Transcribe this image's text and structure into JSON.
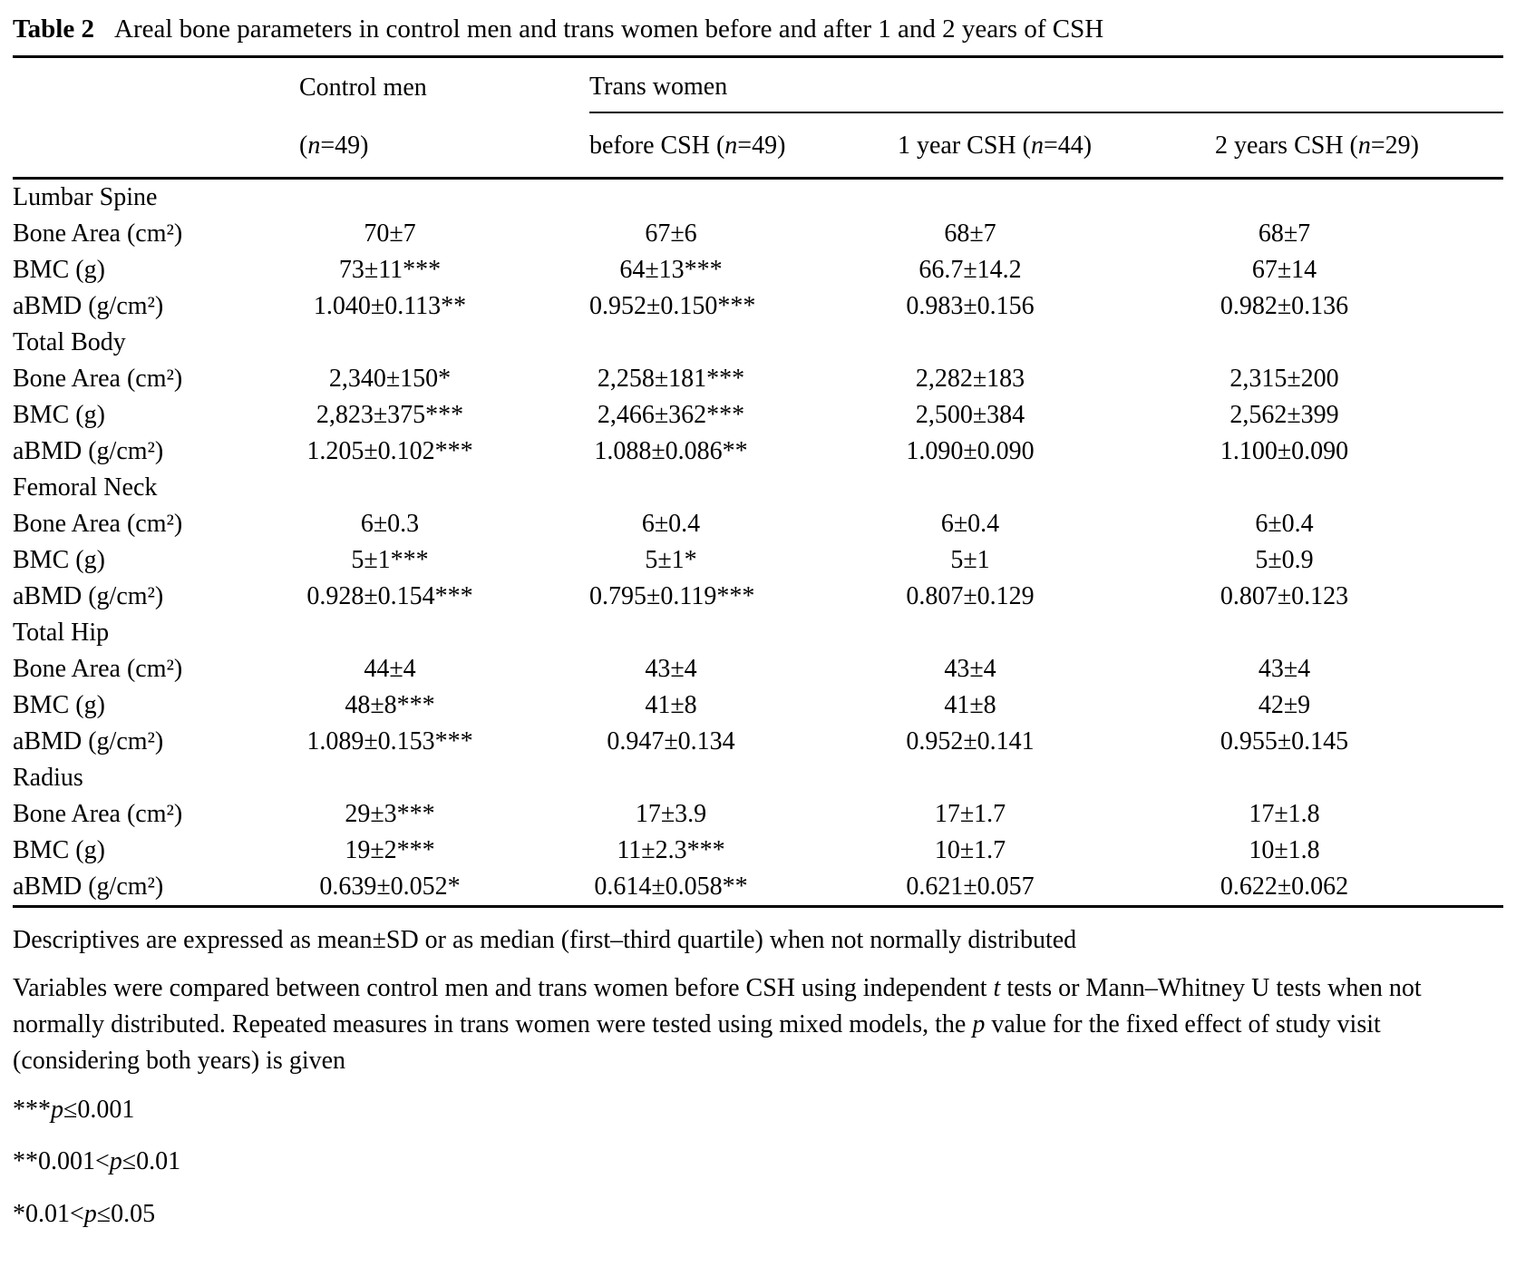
{
  "title": {
    "label": "Table 2",
    "text": "Areal bone parameters in control men and trans women before and after 1 and 2 years of CSH"
  },
  "header": {
    "control": {
      "title": "Control men",
      "sub": {
        "pre": "(",
        "n": "n",
        "post": "=49)"
      }
    },
    "trans": {
      "title": "Trans women",
      "subcols": [
        {
          "pre": "before CSH (",
          "n": "n",
          "post": "=49)"
        },
        {
          "pre": "1 year CSH (",
          "n": "n",
          "post": "=44)"
        },
        {
          "pre": "2 years CSH (",
          "n": "n",
          "post": "=29)"
        }
      ]
    }
  },
  "table": {
    "sections": [
      {
        "name": "Lumbar Spine",
        "rows": [
          {
            "label": "Bone Area (cm²)",
            "values": [
              "70±7",
              "67±6",
              "68±7",
              "68±7"
            ]
          },
          {
            "label": "BMC (g)",
            "values": [
              "73±11***",
              "64±13***",
              "66.7±14.2",
              "67±14"
            ]
          },
          {
            "label": "aBMD (g/cm²)",
            "values": [
              "1.040±0.113**",
              "0.952±0.150***",
              "0.983±0.156",
              "0.982±0.136"
            ]
          }
        ]
      },
      {
        "name": "Total Body",
        "rows": [
          {
            "label": "Bone Area (cm²)",
            "values": [
              "2,340±150*",
              "2,258±181***",
              "2,282±183",
              "2,315±200"
            ]
          },
          {
            "label": "BMC (g)",
            "values": [
              "2,823±375***",
              "2,466±362***",
              "2,500±384",
              "2,562±399"
            ]
          },
          {
            "label": "aBMD (g/cm²)",
            "values": [
              "1.205±0.102***",
              "1.088±0.086**",
              "1.090±0.090",
              "1.100±0.090"
            ]
          }
        ]
      },
      {
        "name": "Femoral Neck",
        "rows": [
          {
            "label": "Bone Area (cm²)",
            "values": [
              "6±0.3",
              "6±0.4",
              "6±0.4",
              "6±0.4"
            ]
          },
          {
            "label": "BMC (g)",
            "values": [
              "5±1***",
              "5±1*",
              "5±1",
              "5±0.9"
            ]
          },
          {
            "label": "aBMD (g/cm²)",
            "values": [
              "0.928±0.154***",
              "0.795±0.119***",
              "0.807±0.129",
              "0.807±0.123"
            ]
          }
        ]
      },
      {
        "name": "Total Hip",
        "rows": [
          {
            "label": "Bone Area (cm²)",
            "values": [
              "44±4",
              "43±4",
              "43±4",
              "43±4"
            ]
          },
          {
            "label": "BMC (g)",
            "values": [
              "48±8***",
              "41±8",
              "41±8",
              "42±9"
            ]
          },
          {
            "label": "aBMD (g/cm²)",
            "values": [
              "1.089±0.153***",
              "0.947±0.134",
              "0.952±0.141",
              "0.955±0.145"
            ]
          }
        ]
      },
      {
        "name": "Radius",
        "rows": [
          {
            "label": "Bone Area (cm²)",
            "values": [
              "29±3***",
              "17±3.9",
              "17±1.7",
              "17±1.8"
            ]
          },
          {
            "label": "BMC (g)",
            "values": [
              "19±2***",
              "11±2.3***",
              "10±1.7",
              "10±1.8"
            ]
          },
          {
            "label": "aBMD (g/cm²)",
            "values": [
              "0.639±0.052*",
              "0.614±0.058**",
              "0.621±0.057",
              "0.622±0.062"
            ]
          }
        ]
      }
    ]
  },
  "footnotes": {
    "descriptives": "Descriptives are expressed as mean±SD or as median (first–third quartile) when not normally distributed",
    "methods": {
      "p1": "Variables were compared between control men and trans women before CSH using independent ",
      "t": "t",
      "p2": " tests or Mann–Whitney U tests when not normally distributed. Repeated measures in trans women were tested using mixed models, the ",
      "p": "p",
      "p3": " value for the fixed effect of study visit (considering both years) is given"
    },
    "sig": [
      {
        "pre": "***",
        "p": "p",
        "post": "≤0.001"
      },
      {
        "pre": "**0.001<",
        "p": "p",
        "post": "≤0.01"
      },
      {
        "pre": "*0.01<",
        "p": "p",
        "post": "≤0.05"
      }
    ]
  }
}
